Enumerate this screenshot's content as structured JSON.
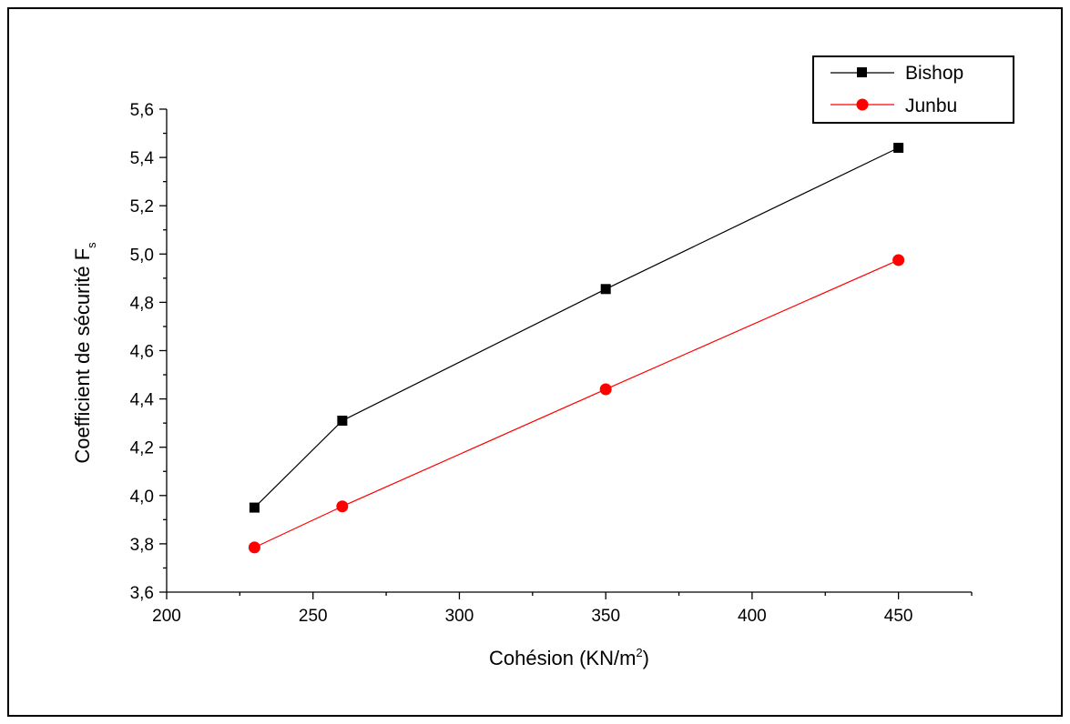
{
  "chart_data": {
    "type": "line",
    "title": "",
    "xlabel_main": "Cohésion (KN/m",
    "xlabel_sup": "2",
    "xlabel_tail": ")",
    "ylabel_main": "Coefficient de sécurité F",
    "ylabel_sub": "s",
    "xlim": [
      200,
      475
    ],
    "ylim": [
      3.6,
      5.6
    ],
    "x_ticks": [
      200,
      250,
      300,
      350,
      400,
      450
    ],
    "y_ticks": [
      3.6,
      3.8,
      4.0,
      4.2,
      4.4,
      4.6,
      4.8,
      5.0,
      5.2,
      5.4,
      5.6
    ],
    "x_tick_labels": [
      "200",
      "250",
      "300",
      "350",
      "400",
      "450"
    ],
    "y_tick_labels": [
      "3,6",
      "3,8",
      "4,0",
      "4,2",
      "4,4",
      "4,6",
      "4,8",
      "5,0",
      "5,2",
      "5,4",
      "5,6"
    ],
    "legend_position": "top-right",
    "grid": false,
    "series": [
      {
        "name": "Bishop",
        "color": "#000000",
        "marker": "square",
        "x": [
          230,
          260,
          350,
          450
        ],
        "y": [
          3.95,
          4.31,
          4.855,
          5.44
        ]
      },
      {
        "name": "Junbu",
        "color": "#ff0000",
        "marker": "circle",
        "x": [
          230,
          260,
          350,
          450
        ],
        "y": [
          3.785,
          3.955,
          4.44,
          4.975
        ]
      }
    ]
  }
}
